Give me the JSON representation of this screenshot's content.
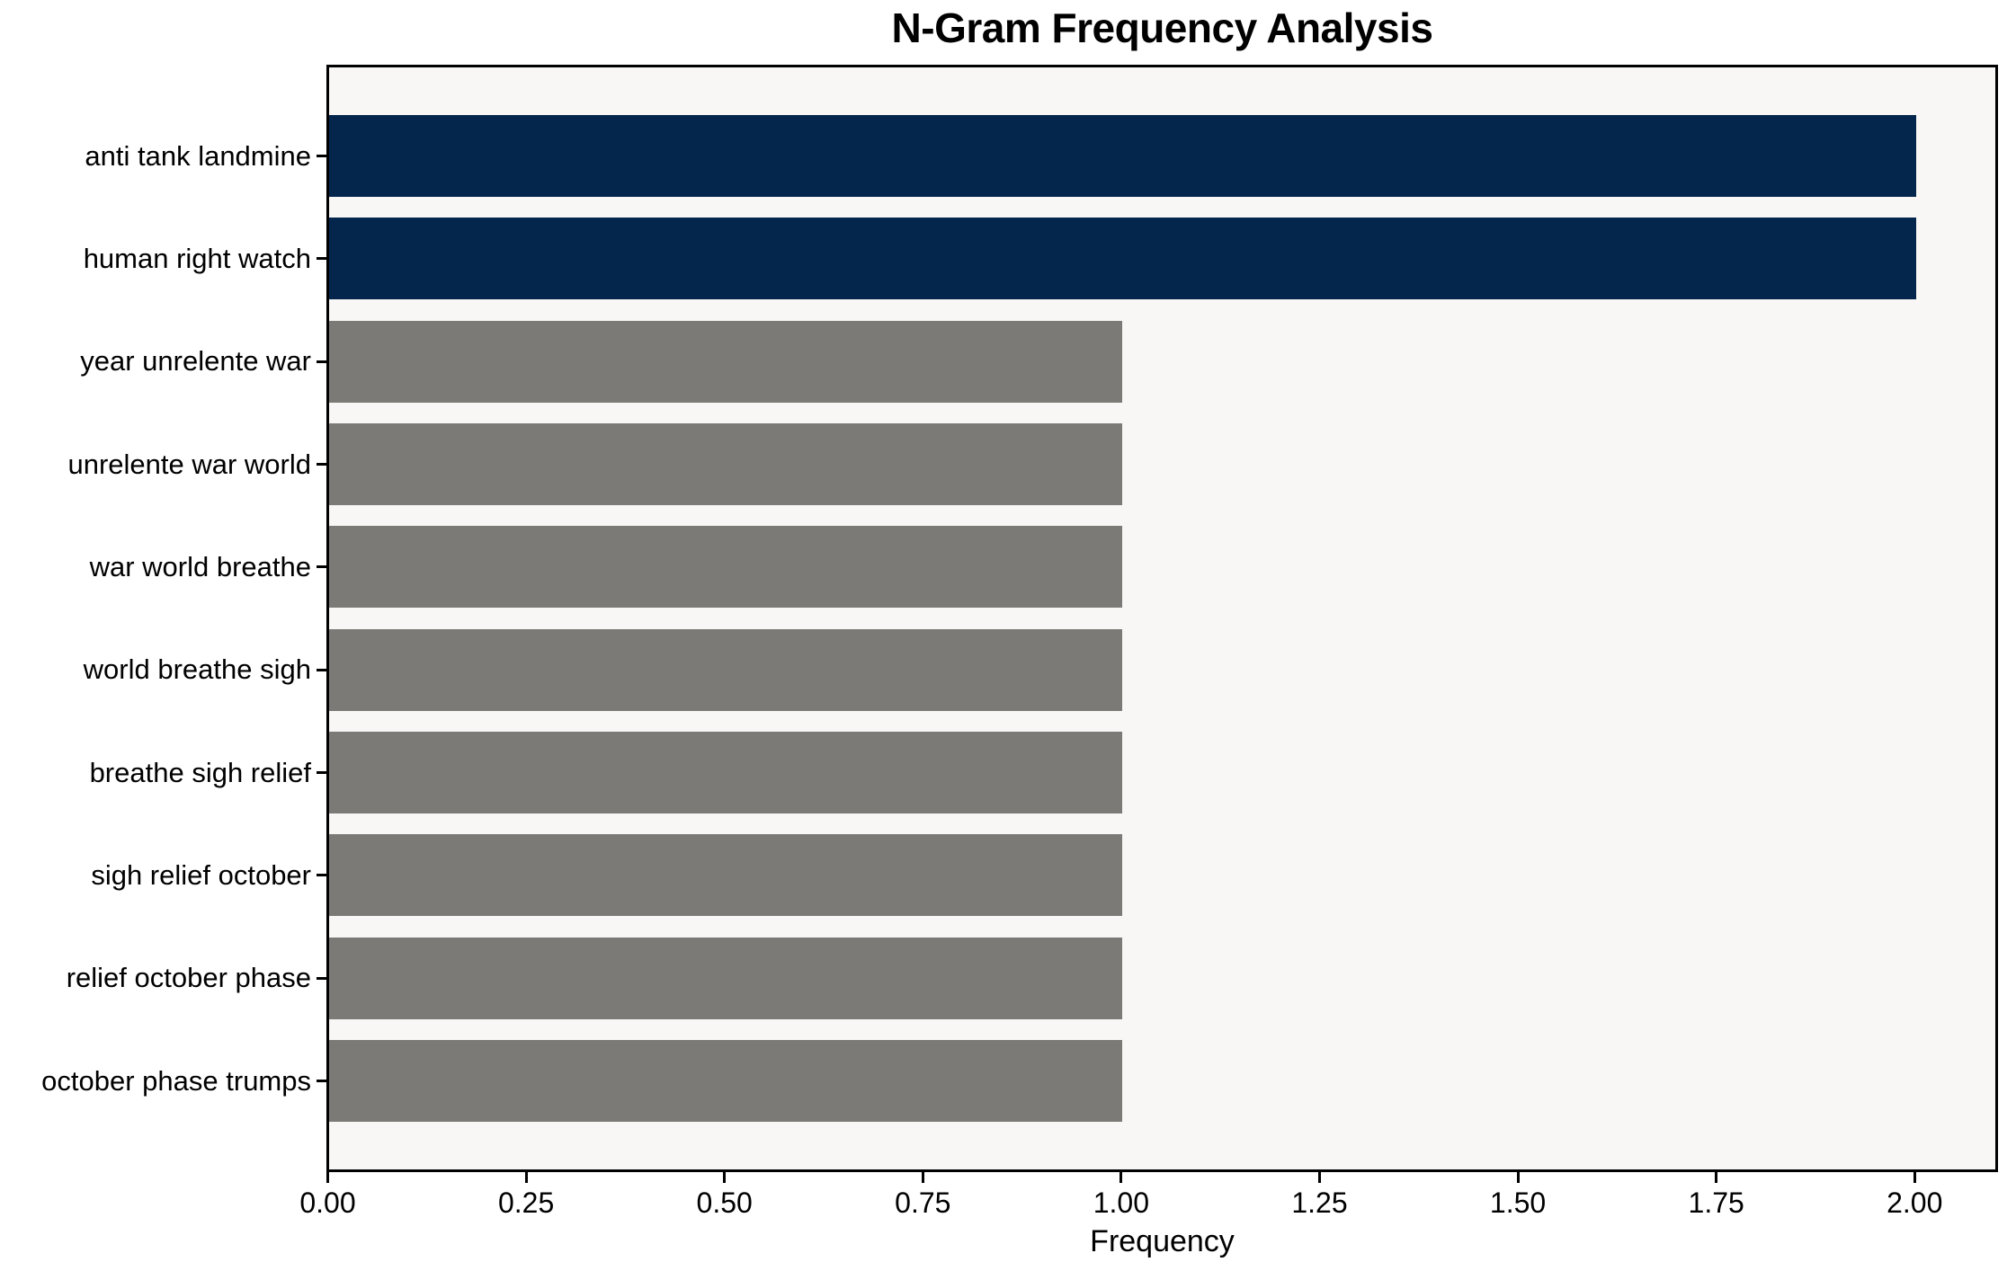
{
  "chart_data": {
    "type": "bar",
    "orientation": "horizontal",
    "title": "N-Gram Frequency Analysis",
    "xlabel": "Frequency",
    "ylabel": "",
    "categories": [
      "anti tank landmine",
      "human right watch",
      "year unrelente war",
      "unrelente war world",
      "war world breathe",
      "world breathe sigh",
      "breathe sigh relief",
      "sigh relief october",
      "relief october phase",
      "october phase trumps"
    ],
    "values": [
      2,
      2,
      1,
      1,
      1,
      1,
      1,
      1,
      1,
      1
    ],
    "bar_colors": [
      "#04254c",
      "#04254c",
      "#7b7a77",
      "#7b7a77",
      "#7b7a77",
      "#7b7a77",
      "#7b7a77",
      "#7b7a77",
      "#7b7a77",
      "#7b7a77"
    ],
    "x_ticks": [
      {
        "value": 0.0,
        "label": "0.00"
      },
      {
        "value": 0.25,
        "label": "0.25"
      },
      {
        "value": 0.5,
        "label": "0.50"
      },
      {
        "value": 0.75,
        "label": "0.75"
      },
      {
        "value": 1.0,
        "label": "1.00"
      },
      {
        "value": 1.25,
        "label": "1.25"
      },
      {
        "value": 1.5,
        "label": "1.50"
      },
      {
        "value": 1.75,
        "label": "1.75"
      },
      {
        "value": 2.0,
        "label": "2.00"
      }
    ],
    "xlim": [
      0,
      2.1
    ],
    "grid": false,
    "legend": null,
    "colors": {
      "highlight_bar": "#04254c",
      "default_bar": "#7b7a77",
      "plot_background": "#f8f7f6",
      "figure_background": "#ffffff",
      "axis_frame": "#000000",
      "text": "#000000"
    }
  }
}
